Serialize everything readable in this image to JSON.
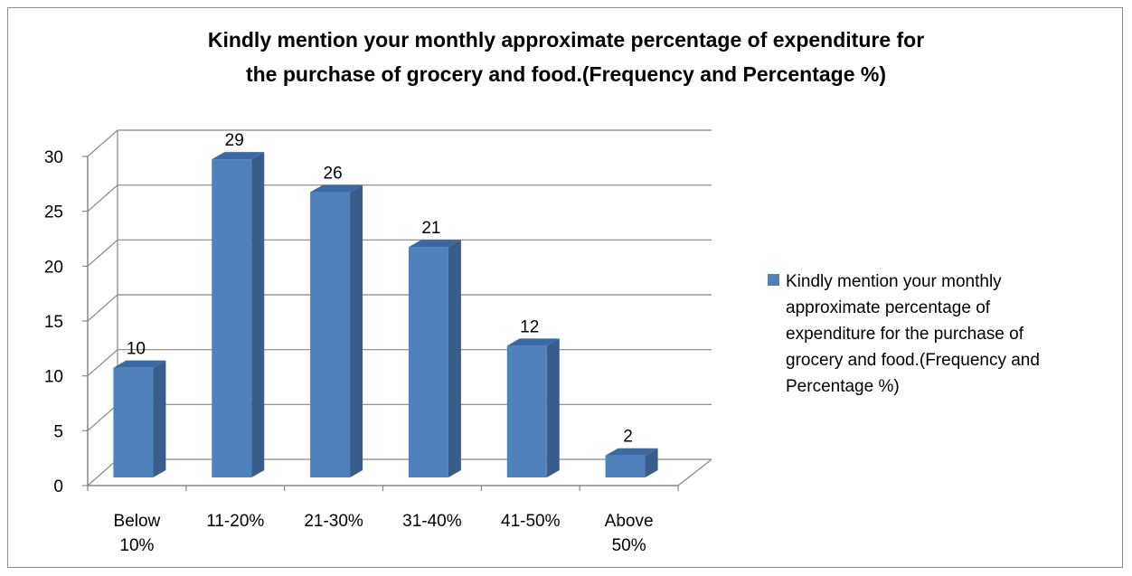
{
  "chart_data": {
    "type": "bar",
    "title_lines": [
      "Kindly mention your monthly approximate percentage of expenditure for",
      "the purchase of grocery and food.(Frequency and Percentage %)"
    ],
    "categories": [
      [
        "Below",
        "10%"
      ],
      [
        "11-20%"
      ],
      [
        "21-30%"
      ],
      [
        "31-40%"
      ],
      [
        "41-50%"
      ],
      [
        "Above",
        "50%"
      ]
    ],
    "series": [
      {
        "name_lines": [
          "Kindly mention your monthly",
          "approximate percentage of",
          "expenditure for the purchase of",
          "grocery and food.(Frequency and",
          "Percentage %)"
        ],
        "values": [
          10,
          29,
          26,
          21,
          12,
          2
        ],
        "color": "#4f81bd"
      }
    ],
    "ylim": [
      0,
      30
    ],
    "yticks": [
      "0",
      "5",
      "10",
      "15",
      "20",
      "25",
      "30"
    ],
    "data_labels": [
      "10",
      "29",
      "26",
      "21",
      "12",
      "2"
    ],
    "grid": true,
    "legend_position": "right",
    "style": "3d-column"
  }
}
